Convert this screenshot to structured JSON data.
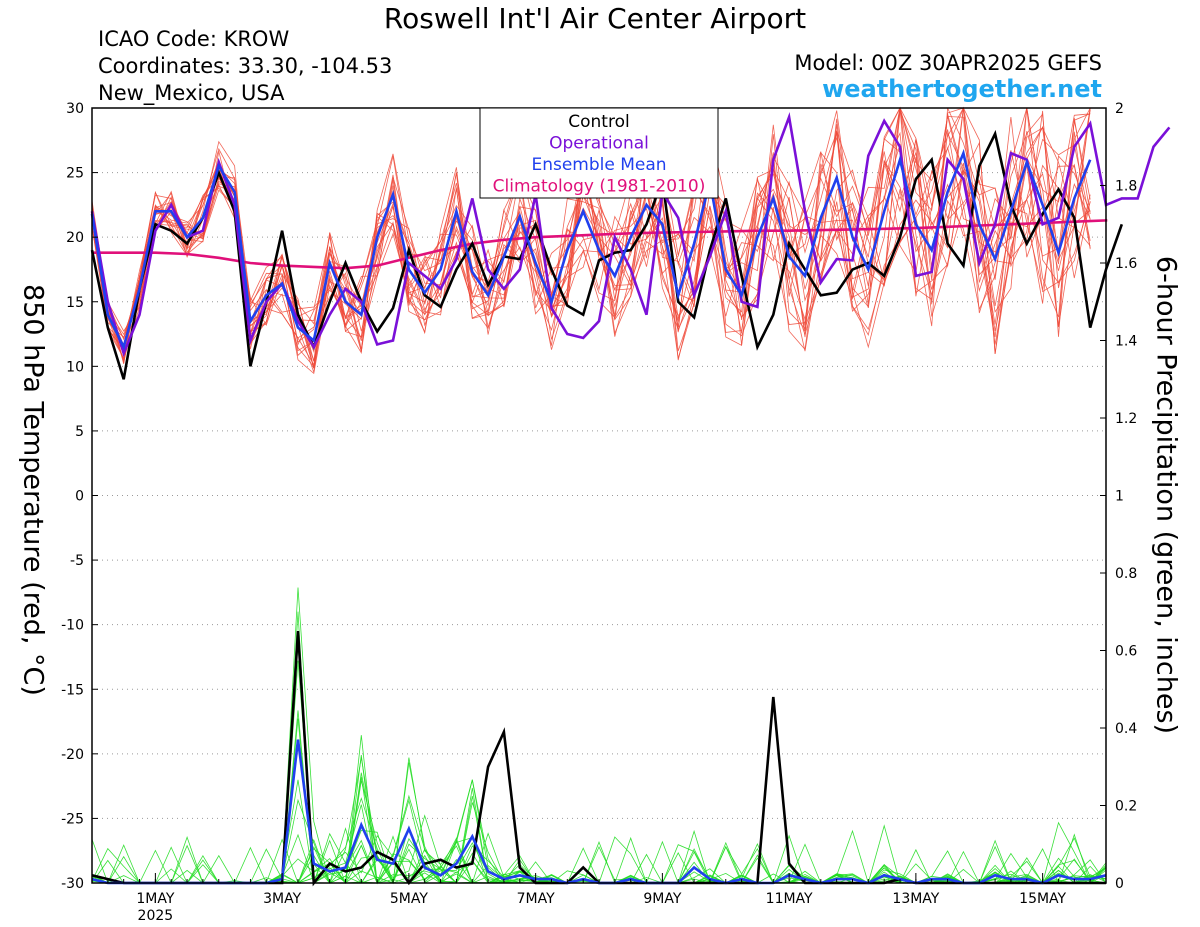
{
  "header": {
    "title": "Roswell Int'l Air Center Airport",
    "icao": "ICAO Code: KROW",
    "coords": "Coordinates: 33.30, -104.53",
    "region": "New_Mexico, USA",
    "model": "Model: 00Z 30APR2025 GEFS",
    "site": "weathertogether.net"
  },
  "colors": {
    "ensemble_temp": "#ef4a3a",
    "ensemble_precip": "#22dd22",
    "control": "#000000",
    "operational": "#7a10d8",
    "ensemble_mean": "#2040ee",
    "climatology": "#e0107a",
    "site": "#1fa6ef"
  },
  "chart_data": {
    "type": "line",
    "x_unit": "6-hour steps from 00Z 30APR2025",
    "x_ticks": [
      {
        "x": 4,
        "label": "1MAY",
        "sublabel": "2025"
      },
      {
        "x": 12,
        "label": "3MAY",
        "sublabel": ""
      },
      {
        "x": 20,
        "label": "5MAY",
        "sublabel": ""
      },
      {
        "x": 28,
        "label": "7MAY",
        "sublabel": ""
      },
      {
        "x": 36,
        "label": "9MAY",
        "sublabel": ""
      },
      {
        "x": 44,
        "label": "11MAY",
        "sublabel": ""
      },
      {
        "x": 52,
        "label": "13MAY",
        "sublabel": ""
      },
      {
        "x": 60,
        "label": "15MAY",
        "sublabel": ""
      }
    ],
    "xlim": [
      0,
      64
    ],
    "y_left": {
      "label": "850 hPa Temperature (red, °C)",
      "ylim": [
        -30,
        30
      ],
      "ticks": [
        -30,
        -25,
        -20,
        -15,
        -10,
        -5,
        0,
        5,
        10,
        15,
        20,
        25,
        30
      ]
    },
    "y_right": {
      "label": "6-hour Precipitation (green, inches)",
      "ylim": [
        0,
        2
      ],
      "ticks": [
        "0",
        "0.2",
        "0.4",
        "0.6",
        "0.8",
        "1",
        "1.2",
        "1.4",
        "1.6",
        "1.8",
        "2"
      ]
    },
    "grid": true,
    "legend": {
      "placement": "top-center",
      "entries": [
        {
          "label": "Control",
          "color": "#000000"
        },
        {
          "label": "Operational",
          "color": "#7a10d8"
        },
        {
          "label": "Ensemble Mean",
          "color": "#2040ee"
        },
        {
          "label": "Climatology (1981-2010)",
          "color": "#e0107a"
        }
      ]
    },
    "series": {
      "control_temp": [
        19,
        13,
        9,
        16,
        21,
        20.5,
        19.5,
        21.5,
        25,
        22,
        10,
        15,
        20.5,
        14,
        11.5,
        15,
        18,
        15,
        12.7,
        14.5,
        19,
        15.5,
        14.6,
        17.5,
        19.5,
        16.3,
        18.5,
        18.3,
        21,
        17.5,
        14.7,
        14,
        18.2,
        18.8,
        19,
        21,
        24.5,
        15,
        13.8,
        19,
        23,
        17,
        11.5,
        14,
        19.5,
        17.5,
        15.5,
        15.7,
        17.5,
        18,
        17,
        20,
        24.5,
        26,
        19.5,
        17.8,
        25.5,
        28,
        22.5,
        19.5,
        21.8,
        23.7,
        21.5,
        13,
        17.5,
        21
      ],
      "operational_temp": [
        22,
        15,
        11,
        14,
        20.5,
        22.5,
        20,
        20.5,
        25.8,
        22.5,
        12,
        15,
        16.4,
        13.5,
        11.5,
        14,
        16,
        15,
        11.7,
        12,
        18,
        17,
        16,
        18.3,
        23,
        17.5,
        16,
        17.5,
        23.3,
        14.5,
        12.5,
        12.2,
        13.5,
        20,
        17.5,
        14,
        23.5,
        21.5,
        15.5,
        18.5,
        22,
        15,
        14.6,
        26,
        29.3,
        22,
        16.5,
        18.3,
        18.2,
        26.3,
        29,
        27,
        17,
        17.3,
        26,
        24.5,
        18,
        21,
        26.5,
        26,
        21,
        21.5,
        27,
        28.8,
        22.5,
        23,
        23,
        27,
        28.5
      ],
      "mean_temp": [
        21.8,
        14,
        11.5,
        16,
        22,
        22,
        20,
        21.5,
        25.5,
        23.5,
        13.5,
        15.5,
        16.4,
        13,
        12,
        18,
        15,
        14,
        20,
        23.3,
        17.5,
        15.7,
        17.5,
        22,
        17.3,
        15.5,
        18.5,
        21.6,
        18,
        15,
        19,
        22,
        19,
        17,
        20,
        22.5,
        21,
        15.5,
        19.5,
        24.3,
        17.5,
        15.5,
        20,
        23,
        18.5,
        17,
        21.5,
        24.6,
        20,
        17.5,
        22,
        26,
        21,
        19,
        23.5,
        26.5,
        21,
        18.3,
        22,
        25.8,
        22.5,
        18.8,
        23,
        26
      ],
      "climatology_temp": [
        18.8,
        18.8,
        18.8,
        18.7,
        18.4,
        18,
        17.8,
        17.7,
        17.6,
        17.8,
        18.4,
        19,
        19.5,
        19.8,
        20,
        20.1,
        20.2,
        20.3,
        20.35,
        20.4,
        20.45,
        20.5,
        20.5,
        20.55,
        20.6,
        20.65,
        20.7,
        20.8,
        20.9,
        21,
        21.1,
        21.2,
        21.3,
        21.4,
        21.4
      ],
      "climatology_x": [
        0,
        2,
        4,
        6,
        8,
        10,
        12,
        14,
        16,
        18,
        20,
        22,
        24,
        26,
        28,
        30,
        32,
        34,
        36,
        38,
        40,
        42,
        44,
        46,
        48,
        50,
        52,
        54,
        56,
        58,
        60,
        62,
        64,
        64,
        64
      ],
      "control_precip": [
        0.02,
        0.01,
        0,
        0,
        0,
        0,
        0,
        0,
        0,
        0,
        0,
        0,
        0,
        0.65,
        0,
        0.05,
        0.03,
        0.04,
        0.08,
        0.06,
        0,
        0.05,
        0.06,
        0.04,
        0.05,
        0.3,
        0.39,
        0.04,
        0,
        0,
        0,
        0.04,
        0,
        0,
        0,
        0,
        0,
        0,
        0,
        0,
        0,
        0,
        0,
        0.48,
        0.05,
        0,
        0,
        0,
        0,
        0,
        0,
        0.01,
        0,
        0,
        0,
        0,
        0,
        0,
        0,
        0,
        0,
        0,
        0,
        0,
        0
      ],
      "mean_precip": [
        0.01,
        0,
        0,
        0,
        0,
        0,
        0,
        0,
        0,
        0,
        0,
        0,
        0.01,
        0.37,
        0.05,
        0.03,
        0.04,
        0.15,
        0.06,
        0.05,
        0.14,
        0.04,
        0.02,
        0.05,
        0.12,
        0.03,
        0.01,
        0.02,
        0.01,
        0.01,
        0,
        0.01,
        0,
        0,
        0.01,
        0,
        0,
        0,
        0.04,
        0.01,
        0,
        0.01,
        0,
        0,
        0.02,
        0.01,
        0,
        0.01,
        0.01,
        0,
        0.02,
        0.01,
        0,
        0.01,
        0.01,
        0,
        0,
        0.02,
        0.01,
        0.01,
        0,
        0.02,
        0.01,
        0.01,
        0.02
      ]
    }
  }
}
